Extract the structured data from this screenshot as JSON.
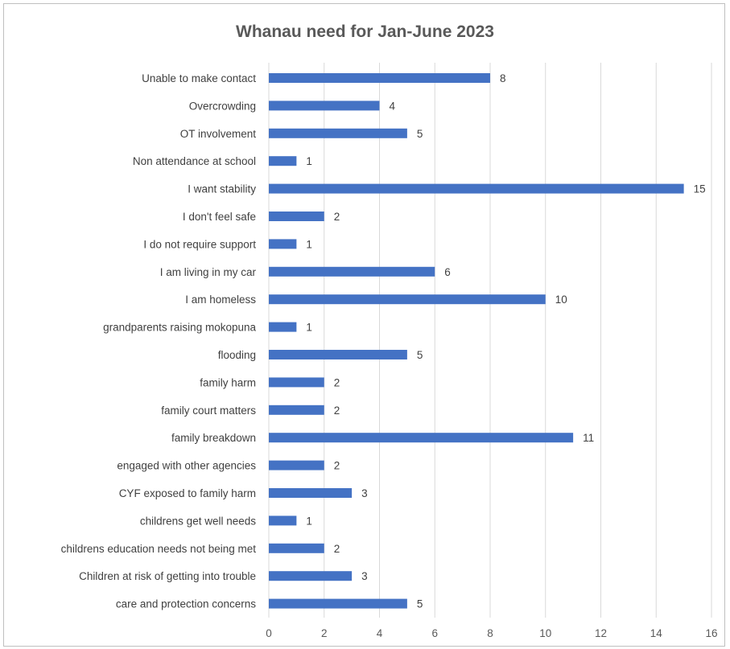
{
  "chart_data": {
    "type": "bar",
    "orientation": "horizontal",
    "title": "Whanau need for Jan-June 2023",
    "xlabel": "",
    "ylabel": "",
    "xlim": [
      0,
      16
    ],
    "x_ticks": [
      "0",
      "2",
      "4",
      "6",
      "8",
      "10",
      "12",
      "14",
      "16"
    ],
    "grid": true,
    "legend": "none",
    "bar_color": "#4472C4",
    "categories": [
      "Unable to make contact",
      "Overcrowding",
      "OT involvement",
      "Non attendance at school",
      "I want stability",
      "I don't feel safe",
      "I do not require support",
      "I am living in my car",
      "I am homeless",
      "grandparents raising mokopuna",
      "flooding",
      "family harm",
      "family court matters",
      "family breakdown",
      "engaged with other agencies",
      "CYF exposed to family harm",
      "childrens get well needs",
      "childrens education needs not being met",
      "Children at risk of getting into trouble",
      "care and protection concerns"
    ],
    "values": [
      8,
      4,
      5,
      1,
      15,
      2,
      1,
      6,
      10,
      1,
      5,
      2,
      2,
      11,
      2,
      3,
      1,
      2,
      3,
      5
    ]
  }
}
